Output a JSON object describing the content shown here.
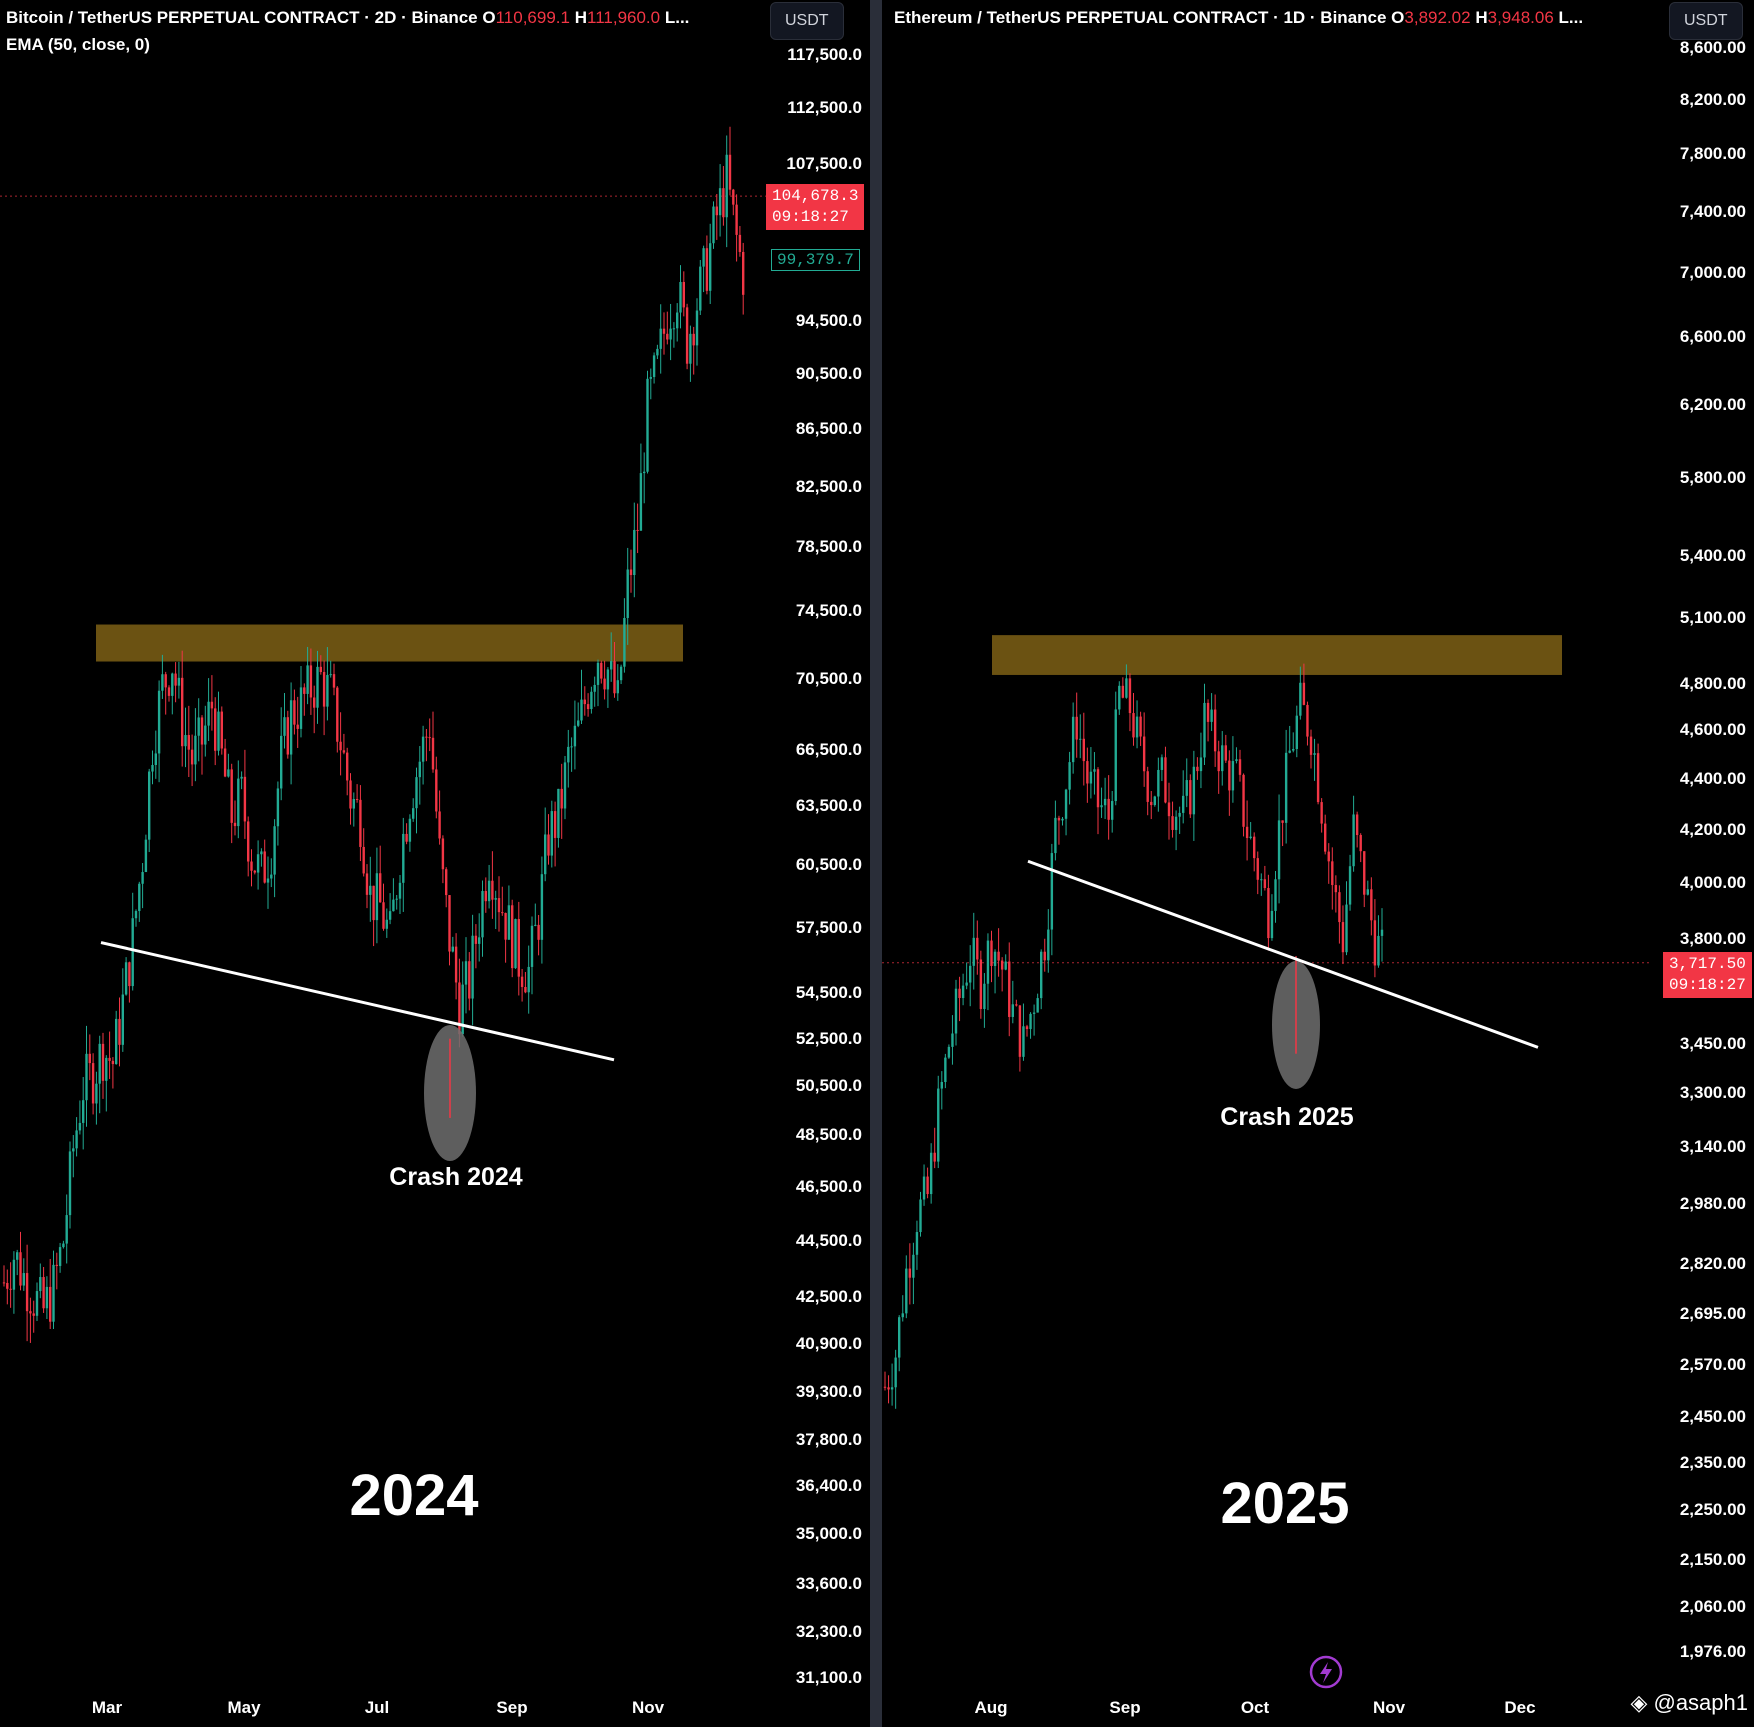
{
  "left": {
    "header": {
      "symbol": "Bitcoin / TetherUS PERPETUAL CONTRACT · 2D · Binance",
      "o_prefix": "O",
      "o_value": "110,699.1",
      "h_prefix": "H",
      "h_value": "111,960.0",
      "tail": "L..."
    },
    "indicator": "EMA (50, close, 0)",
    "currency_button": "USDT",
    "last_price": "104,678.3",
    "countdown": "09:18:27",
    "ema_value": "99,379.7",
    "crash_label": "Crash 2024",
    "year_label": "2024"
  },
  "right": {
    "header": {
      "symbol": "Ethereum / TetherUS PERPETUAL CONTRACT · 1D · Binance",
      "o_prefix": "O",
      "o_value": "3,892.02",
      "h_prefix": "H",
      "h_value": "3,948.06",
      "tail": "L..."
    },
    "currency_button": "USDT",
    "last_price": "3,717.50",
    "countdown": "09:18:27",
    "crash_label": "Crash 2025",
    "year_label": "2025"
  },
  "watermark": "@asaph1",
  "colors": {
    "up": "#22ab94",
    "down": "#f23645",
    "zone": "#6b5212",
    "trendline": "#ffffff",
    "ellipse": "#6e6e6e"
  },
  "chart_data": [
    {
      "type": "candlestick",
      "title": "Bitcoin / TetherUS PERPETUAL CONTRACT · 2D · Binance",
      "scale": "log",
      "y_ticks": [
        "117,500.0",
        "112,500.0",
        "107,500.0",
        "94,500.0",
        "90,500.0",
        "86,500.0",
        "82,500.0",
        "78,500.0",
        "74,500.0",
        "70,500.0",
        "66,500.0",
        "63,500.0",
        "60,500.0",
        "57,500.0",
        "54,500.0",
        "52,500.0",
        "50,500.0",
        "48,500.0",
        "46,500.0",
        "44,500.0",
        "42,500.0",
        "40,900.0",
        "39,300.0",
        "37,800.0",
        "36,400.0",
        "35,000.0",
        "33,600.0",
        "32,300.0",
        "31,100.0"
      ],
      "y_tick_values": [
        117500,
        112500,
        107500,
        94500,
        90500,
        86500,
        82500,
        78500,
        74500,
        70500,
        66500,
        63500,
        60500,
        57500,
        54500,
        52500,
        50500,
        48500,
        46500,
        44500,
        42500,
        40900,
        39300,
        37800,
        36400,
        35000,
        33600,
        32300,
        31100
      ],
      "x_ticks": [
        "Mar",
        "May",
        "Jul",
        "Sep",
        "Nov"
      ],
      "resistance_zone": [
        71500,
        73700
      ],
      "trendline": [
        {
          "date": "2024-02-28",
          "price": 56800
        },
        {
          "date": "2024-10-06",
          "price": 51600
        }
      ],
      "path": [
        [
          43000,
          0
        ],
        [
          44000,
          3
        ],
        [
          43200,
          6
        ],
        [
          42500,
          9
        ],
        [
          42000,
          12
        ],
        [
          42800,
          15
        ],
        [
          44500,
          18
        ],
        [
          48000,
          21
        ],
        [
          50500,
          24
        ],
        [
          51000,
          27
        ],
        [
          52000,
          30
        ],
        [
          51500,
          33
        ],
        [
          54000,
          36
        ],
        [
          57000,
          39
        ],
        [
          61000,
          42
        ],
        [
          67000,
          45
        ],
        [
          70000,
          48
        ],
        [
          71500,
          51
        ],
        [
          68000,
          54
        ],
        [
          66000,
          57
        ],
        [
          67000,
          60
        ],
        [
          69000,
          63
        ],
        [
          66000,
          66
        ],
        [
          63000,
          69
        ],
        [
          64000,
          72
        ],
        [
          61000,
          75
        ],
        [
          60000,
          78
        ],
        [
          61500,
          81
        ],
        [
          66000,
          84
        ],
        [
          68500,
          87
        ],
        [
          69000,
          90
        ],
        [
          70000,
          93
        ],
        [
          70500,
          96
        ],
        [
          69500,
          99
        ],
        [
          67000,
          102
        ],
        [
          64000,
          105
        ],
        [
          63000,
          108
        ],
        [
          59000,
          111
        ],
        [
          58500,
          114
        ],
        [
          57000,
          117
        ],
        [
          61000,
          120
        ],
        [
          64000,
          123
        ],
        [
          66000,
          126
        ],
        [
          68000,
          129
        ],
        [
          61000,
          132
        ],
        [
          57000,
          135
        ],
        [
          54000,
          138
        ],
        [
          55000,
          141
        ],
        [
          58000,
          144
        ],
        [
          61000,
          147
        ],
        [
          59000,
          150
        ],
        [
          57500,
          153
        ],
        [
          56000,
          156
        ],
        [
          55500,
          159
        ],
        [
          58000,
          162
        ],
        [
          62000,
          165
        ],
        [
          63000,
          168
        ],
        [
          66000,
          171
        ],
        [
          67500,
          174
        ],
        [
          70000,
          177
        ],
        [
          72000,
          180
        ],
        [
          71000,
          183
        ],
        [
          69000,
          186
        ],
        [
          76000,
          189
        ],
        [
          80000,
          192
        ],
        [
          88000,
          195
        ],
        [
          91000,
          198
        ],
        [
          95000,
          201
        ],
        [
          97000,
          204
        ],
        [
          93000,
          207
        ],
        [
          96000,
          210
        ],
        [
          99000,
          213
        ],
        [
          103000,
          216
        ],
        [
          106000,
          219
        ],
        [
          101000,
          222
        ],
        [
          97000,
          225
        ]
      ]
    },
    {
      "type": "candlestick",
      "title": "Ethereum / TetherUS PERPETUAL CONTRACT · 1D · Binance",
      "scale": "log",
      "y_ticks": [
        "8,600.00",
        "8,200.00",
        "7,800.00",
        "7,400.00",
        "7,000.00",
        "6,600.00",
        "6,200.00",
        "5,800.00",
        "5,400.00",
        "5,100.00",
        "4,800.00",
        "4,600.00",
        "4,400.00",
        "4,200.00",
        "4,000.00",
        "3,800.00",
        "3,450.00",
        "3,300.00",
        "3,140.00",
        "2,980.00",
        "2,820.00",
        "2,695.00",
        "2,570.00",
        "2,450.00",
        "2,350.00",
        "2,250.00",
        "2,150.00",
        "2,060.00",
        "1,976.00"
      ],
      "y_tick_values": [
        8600,
        8200,
        7800,
        7400,
        7000,
        6600,
        6200,
        5800,
        5400,
        5100,
        4800,
        4600,
        4400,
        4200,
        4000,
        3800,
        3450,
        3300,
        3140,
        2980,
        2820,
        2695,
        2570,
        2450,
        2350,
        2250,
        2150,
        2060,
        1976
      ],
      "x_ticks": [
        "Aug",
        "Sep",
        "Oct",
        "Nov",
        "Dec"
      ],
      "resistance_zone": [
        4840,
        5020
      ],
      "trendline": [
        {
          "date": "2025-08-10",
          "price": 4080
        },
        {
          "date": "2025-12-01",
          "price": 3440
        }
      ],
      "path": [
        [
          2520,
          0
        ],
        [
          2600,
          3
        ],
        [
          2800,
          6
        ],
        [
          2950,
          9
        ],
        [
          3000,
          12
        ],
        [
          3250,
          15
        ],
        [
          3450,
          18
        ],
        [
          3600,
          21
        ],
        [
          3750,
          24
        ],
        [
          3650,
          27
        ],
        [
          3800,
          30
        ],
        [
          3700,
          33
        ],
        [
          3550,
          36
        ],
        [
          3450,
          39
        ],
        [
          3600,
          42
        ],
        [
          3800,
          45
        ],
        [
          4200,
          48
        ],
        [
          4400,
          51
        ],
        [
          4650,
          54
        ],
        [
          4400,
          57
        ],
        [
          4300,
          60
        ],
        [
          4250,
          63
        ],
        [
          4750,
          66
        ],
        [
          4700,
          69
        ],
        [
          4500,
          72
        ],
        [
          4350,
          75
        ],
        [
          4400,
          78
        ],
        [
          4300,
          81
        ],
        [
          4250,
          84
        ],
        [
          4400,
          87
        ],
        [
          4650,
          90
        ],
        [
          4550,
          93
        ],
        [
          4450,
          96
        ],
        [
          4400,
          99
        ],
        [
          4200,
          102
        ],
        [
          4050,
          105
        ],
        [
          3900,
          108
        ],
        [
          4200,
          111
        ],
        [
          4500,
          114
        ],
        [
          4700,
          117
        ],
        [
          4600,
          120
        ],
        [
          4300,
          123
        ],
        [
          4000,
          126
        ],
        [
          3800,
          129
        ],
        [
          4200,
          132
        ],
        [
          4000,
          135
        ],
        [
          3800,
          138
        ],
        [
          3717,
          141
        ]
      ]
    }
  ]
}
